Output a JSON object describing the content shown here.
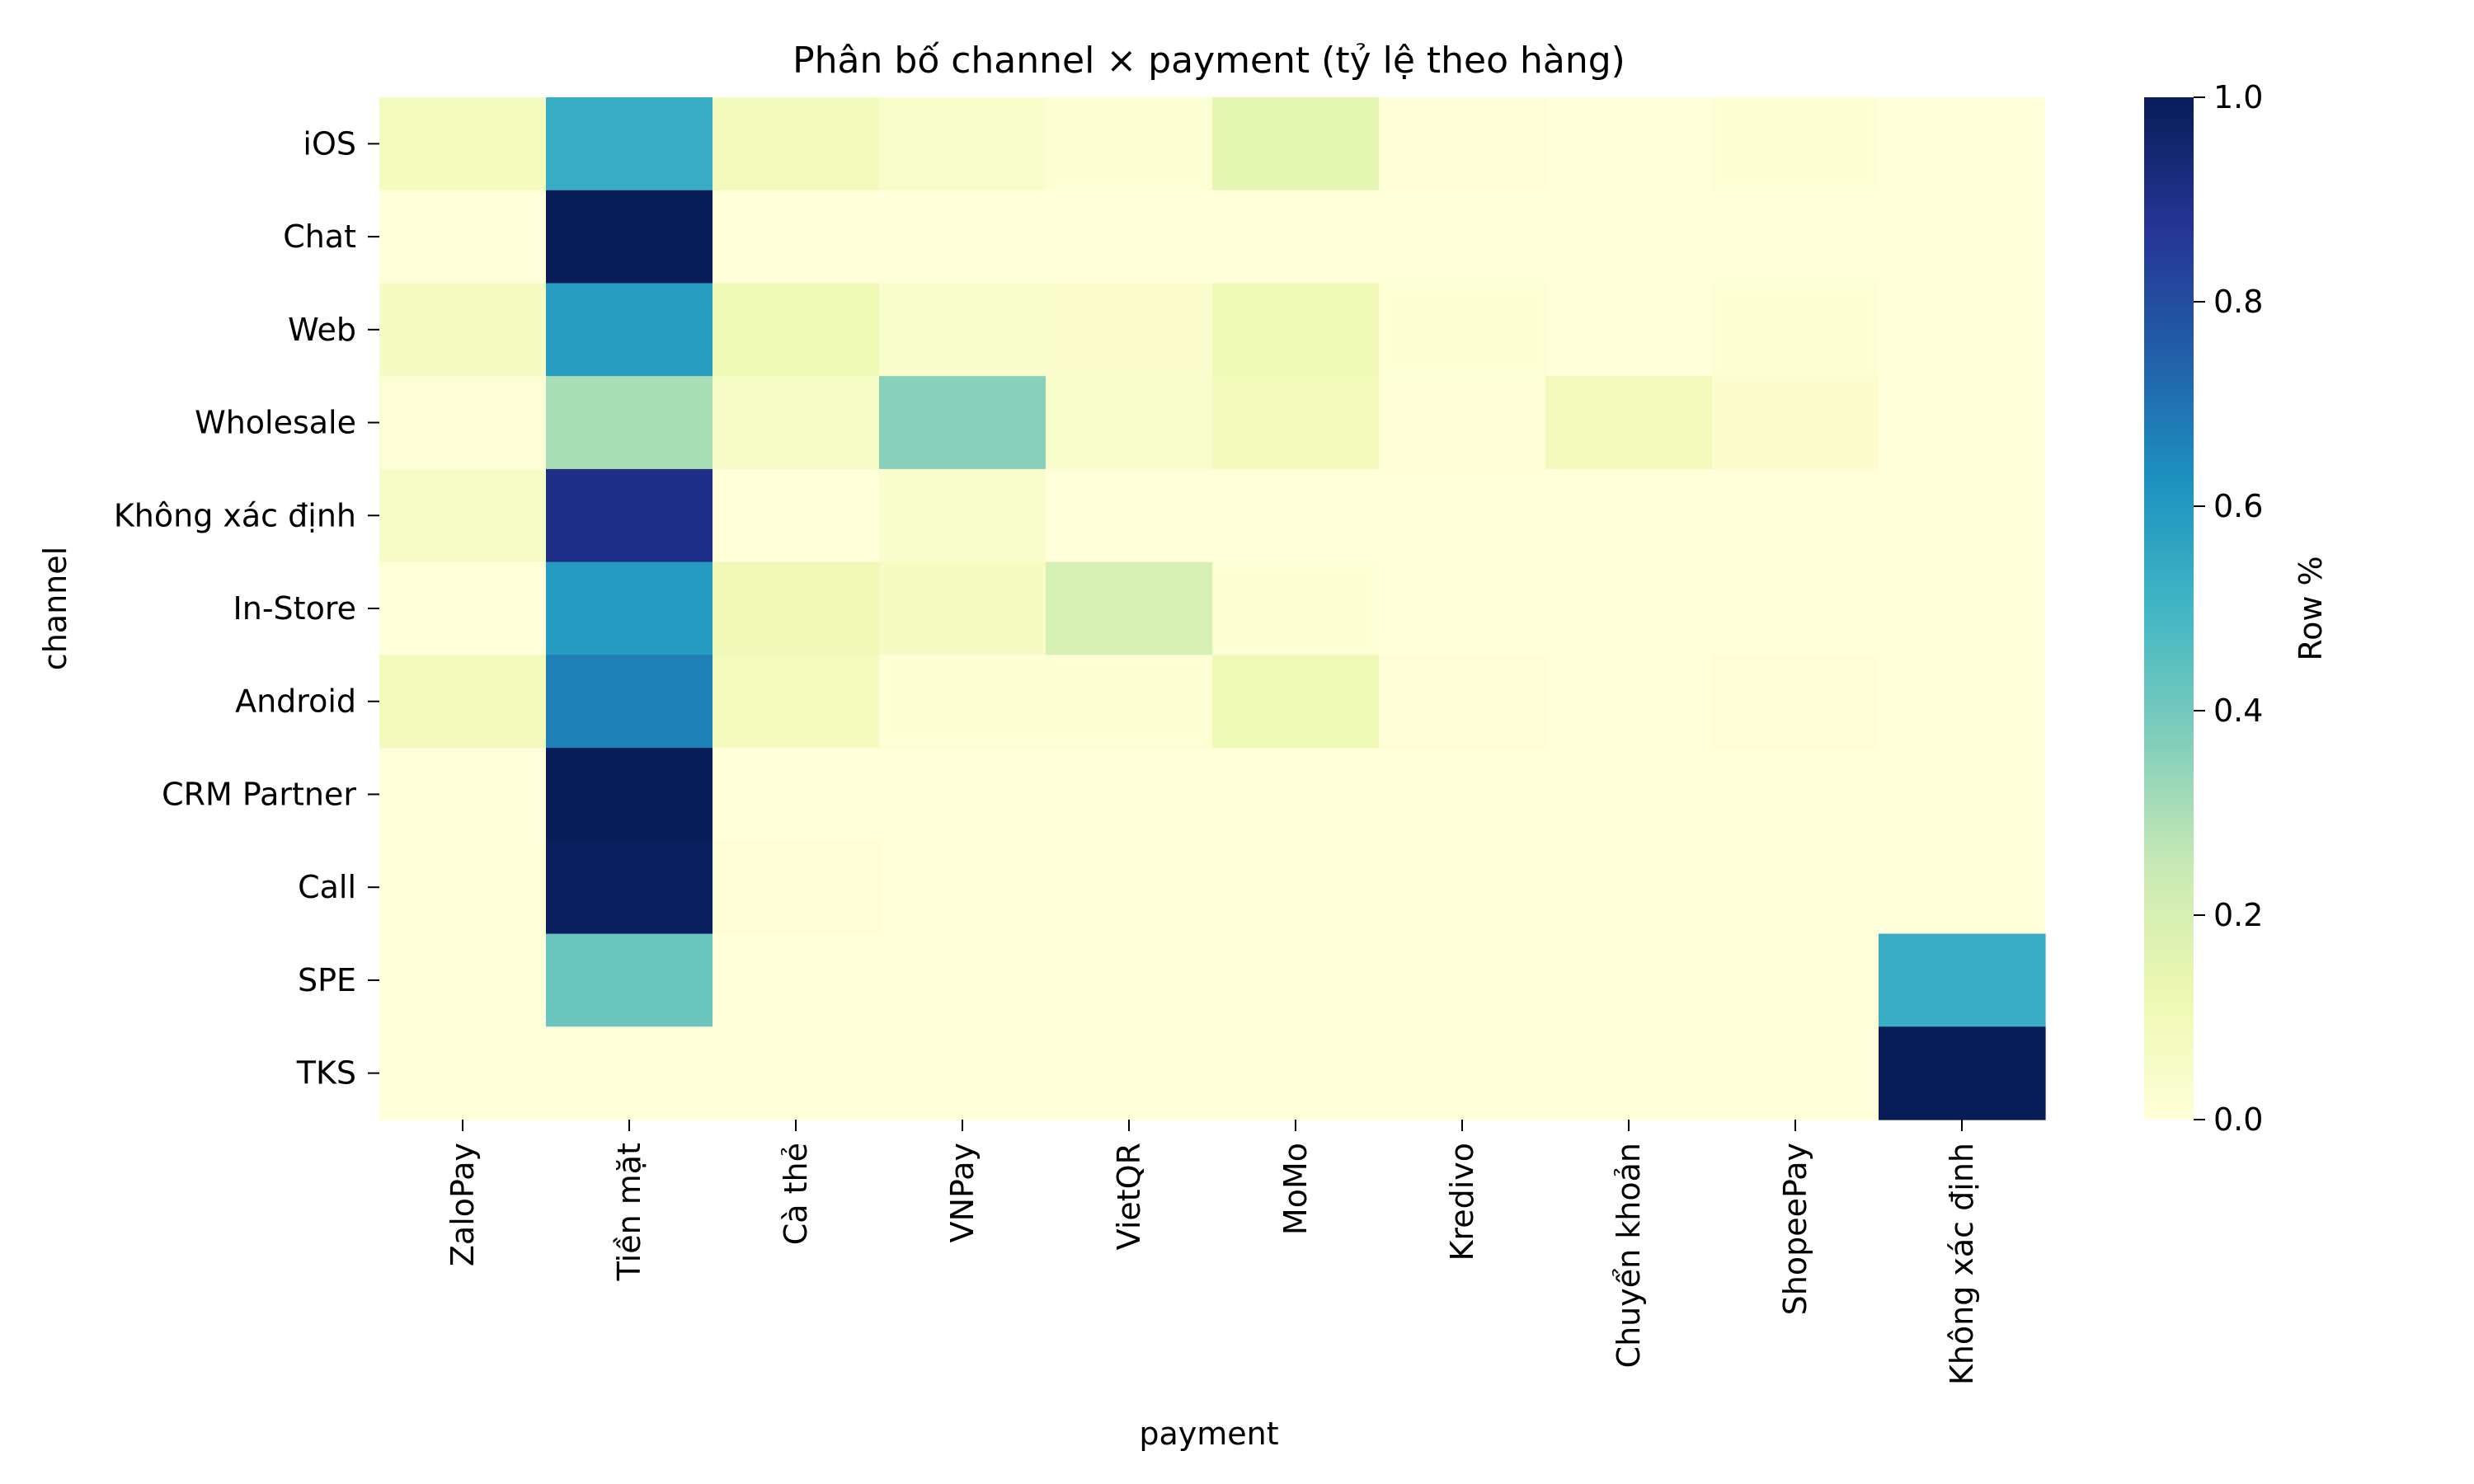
{
  "chart_data": {
    "type": "heatmap",
    "title": "Phân bố channel × payment (tỷ lệ theo hàng)",
    "xlabel": "payment",
    "ylabel": "channel",
    "colorbar_label": "Row %",
    "colorbar_range": [
      0,
      1
    ],
    "colorbar_ticks": [
      "0.0",
      "0.2",
      "0.4",
      "0.6",
      "0.8",
      "1.0"
    ],
    "colormap": "YlGnBu",
    "x_categories": [
      "ZaloPay",
      "Tiền mặt",
      "Cà thẻ",
      "VNPay",
      "VietQR",
      "MoMo",
      "Kredivo",
      "Chuyển khoản",
      "ShopeePay",
      "Không xác định"
    ],
    "y_categories": [
      "iOS",
      "Chat",
      "Web",
      "Wholesale",
      "Không xác định",
      "In-Store",
      "Android",
      "CRM Partner",
      "Call",
      "SPE",
      "TKS"
    ],
    "values": [
      [
        0.08,
        0.53,
        0.09,
        0.04,
        0.02,
        0.15,
        0.01,
        0.0,
        0.02,
        0.0
      ],
      [
        0.0,
        1.0,
        0.0,
        0.0,
        0.0,
        0.0,
        0.0,
        0.0,
        0.0,
        0.0
      ],
      [
        0.07,
        0.58,
        0.11,
        0.04,
        0.03,
        0.11,
        0.02,
        0.0,
        0.02,
        0.0
      ],
      [
        0.01,
        0.3,
        0.06,
        0.36,
        0.04,
        0.09,
        0.01,
        0.09,
        0.03,
        0.0
      ],
      [
        0.06,
        0.9,
        0.0,
        0.04,
        0.0,
        0.0,
        0.0,
        0.0,
        0.0,
        0.0
      ],
      [
        0.0,
        0.59,
        0.1,
        0.07,
        0.2,
        0.02,
        0.0,
        0.0,
        0.0,
        0.0
      ],
      [
        0.09,
        0.67,
        0.08,
        0.02,
        0.02,
        0.11,
        0.01,
        0.0,
        0.01,
        0.0
      ],
      [
        0.0,
        1.0,
        0.0,
        0.0,
        0.0,
        0.0,
        0.0,
        0.0,
        0.0,
        0.0
      ],
      [
        0.0,
        0.99,
        0.01,
        0.0,
        0.0,
        0.0,
        0.0,
        0.0,
        0.0,
        0.0
      ],
      [
        0.0,
        0.42,
        0.0,
        0.0,
        0.0,
        0.0,
        0.0,
        0.0,
        0.0,
        0.53
      ],
      [
        0.0,
        0.0,
        0.0,
        0.0,
        0.0,
        0.0,
        0.0,
        0.0,
        0.0,
        1.0
      ]
    ]
  }
}
